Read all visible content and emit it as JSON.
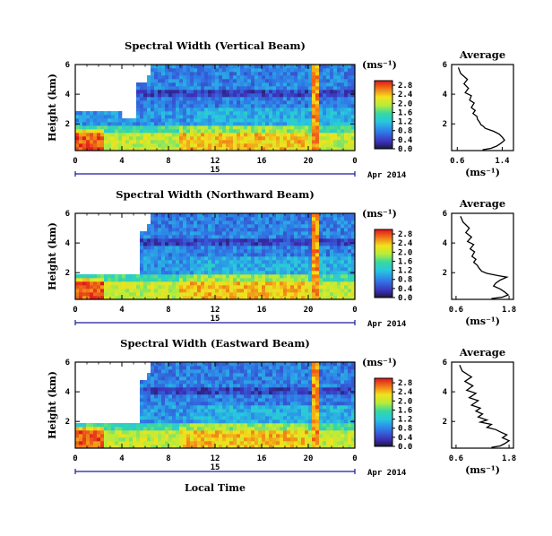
{
  "figure": {
    "xlabel": "Local Time",
    "date_label": "Apr 2014",
    "day_label": "15",
    "colorbar_unit": "(ms⁻¹)",
    "average_title": "Average",
    "average_xlabel": "(ms⁻¹)"
  },
  "chart_data": [
    {
      "type": "heatmap",
      "title": "Spectral Width (Vertical Beam)",
      "ylabel": "Height (km)",
      "xlabel": "",
      "x_ticks": [
        "0",
        "4",
        "8",
        "12",
        "16",
        "20",
        "0"
      ],
      "xlim": [
        0,
        24
      ],
      "y_ticks": [
        "2",
        "4",
        "6"
      ],
      "ylim": [
        0.2,
        6.0
      ],
      "colorbar": {
        "label": "(ms⁻¹)",
        "ticks": [
          "0.0",
          "0.4",
          "0.8",
          "1.2",
          "1.6",
          "2.0",
          "2.4",
          "2.8"
        ],
        "range": [
          0.0,
          3.0
        ]
      },
      "average_profile": {
        "title": "Average",
        "xlabel": "(ms⁻¹)",
        "x_ticks": [
          "0.6",
          "1.4"
        ],
        "xlim": [
          0.5,
          1.6
        ],
        "y_ticks": [
          "2",
          "4",
          "6"
        ],
        "ylim": [
          0.2,
          6.0
        ],
        "x": [
          0.62,
          0.66,
          0.78,
          0.72,
          0.8,
          0.74,
          0.85,
          0.82,
          0.9,
          0.85,
          0.92,
          0.88,
          0.95,
          0.96,
          1.0,
          1.02,
          1.06,
          1.1,
          1.25,
          1.35,
          1.4,
          1.44,
          1.38,
          1.3,
          1.2,
          1.05
        ],
        "y": [
          5.8,
          5.4,
          5.0,
          4.7,
          4.4,
          4.1,
          3.9,
          3.6,
          3.4,
          3.1,
          2.9,
          2.7,
          2.5,
          2.3,
          2.1,
          1.95,
          1.85,
          1.7,
          1.5,
          1.3,
          1.1,
          0.9,
          0.7,
          0.5,
          0.35,
          0.25
        ]
      }
    },
    {
      "type": "heatmap",
      "title": "Spectral Width (Northward Beam)",
      "ylabel": "Height (km)",
      "xlabel": "",
      "x_ticks": [
        "0",
        "4",
        "8",
        "12",
        "16",
        "20",
        "0"
      ],
      "xlim": [
        0,
        24
      ],
      "y_ticks": [
        "2",
        "4",
        "6"
      ],
      "ylim": [
        0.2,
        6.0
      ],
      "colorbar": {
        "label": "(ms⁻¹)",
        "ticks": [
          "0.0",
          "0.4",
          "0.8",
          "1.2",
          "1.6",
          "2.0",
          "2.4",
          "2.8"
        ],
        "range": [
          0.0,
          3.0
        ]
      },
      "average_profile": {
        "title": "Average",
        "xlabel": "(ms⁻¹)",
        "x_ticks": [
          "0.6",
          "1.8"
        ],
        "xlim": [
          0.5,
          1.9
        ],
        "y_ticks": [
          "2",
          "4",
          "6"
        ],
        "ylim": [
          0.2,
          6.0
        ],
        "x": [
          0.7,
          0.76,
          0.9,
          0.82,
          0.95,
          0.86,
          1.0,
          0.92,
          1.02,
          0.96,
          1.05,
          1.0,
          1.08,
          1.12,
          1.18,
          1.3,
          1.55,
          1.75,
          1.6,
          1.5,
          1.45,
          1.6,
          1.7,
          1.78,
          1.65,
          1.4
        ],
        "y": [
          5.8,
          5.4,
          5.0,
          4.7,
          4.4,
          4.1,
          3.9,
          3.6,
          3.4,
          3.1,
          2.9,
          2.7,
          2.5,
          2.3,
          2.1,
          1.95,
          1.8,
          1.7,
          1.5,
          1.3,
          1.1,
          0.9,
          0.7,
          0.5,
          0.35,
          0.25
        ]
      }
    },
    {
      "type": "heatmap",
      "title": "Spectral Width (Eastward Beam)",
      "ylabel": "Height (km)",
      "xlabel": "Local Time",
      "x_ticks": [
        "0",
        "4",
        "8",
        "12",
        "16",
        "20",
        "0"
      ],
      "xlim": [
        0,
        24
      ],
      "y_ticks": [
        "2",
        "4",
        "6"
      ],
      "ylim": [
        0.2,
        6.0
      ],
      "colorbar": {
        "label": "(ms⁻¹)",
        "ticks": [
          "0.0",
          "0.4",
          "0.8",
          "1.2",
          "1.6",
          "2.0",
          "2.4",
          "2.8"
        ],
        "range": [
          0.0,
          3.0
        ]
      },
      "average_profile": {
        "title": "Average",
        "xlabel": "(ms⁻¹)",
        "x_ticks": [
          "0.6",
          "1.8"
        ],
        "xlim": [
          0.5,
          1.9
        ],
        "y_ticks": [
          "2",
          "4",
          "6"
        ],
        "ylim": [
          0.2,
          6.0
        ],
        "x": [
          0.68,
          0.74,
          0.95,
          0.8,
          0.98,
          0.84,
          1.05,
          0.9,
          1.1,
          0.95,
          1.15,
          1.05,
          1.2,
          1.1,
          1.3,
          1.15,
          1.4,
          1.3,
          1.5,
          1.6,
          1.75,
          1.65,
          1.8,
          1.7,
          1.6,
          1.4
        ],
        "y": [
          5.8,
          5.4,
          5.0,
          4.7,
          4.4,
          4.1,
          3.9,
          3.6,
          3.4,
          3.1,
          2.9,
          2.7,
          2.5,
          2.3,
          2.1,
          1.95,
          1.8,
          1.6,
          1.45,
          1.3,
          1.1,
          0.9,
          0.7,
          0.5,
          0.35,
          0.25
        ]
      }
    }
  ]
}
